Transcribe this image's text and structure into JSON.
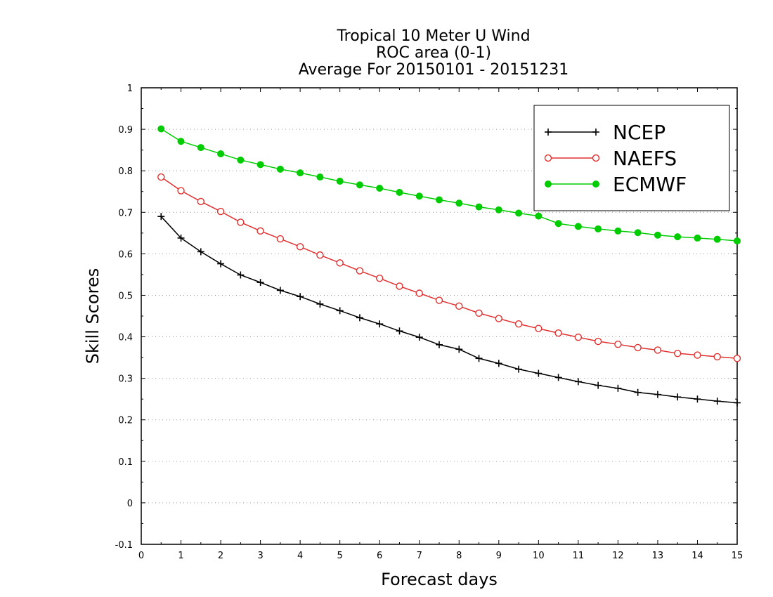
{
  "chart_data": {
    "type": "line",
    "title": [
      "Tropical 10 Meter U Wind",
      "ROC area (0-1)",
      "Average For 20150101 - 20151231"
    ],
    "xlabel": "Forecast days",
    "ylabel": "Skill Scores",
    "xlim": [
      0,
      15
    ],
    "ylim": [
      -0.1,
      1
    ],
    "xticks": [
      0,
      1,
      2,
      3,
      4,
      5,
      6,
      7,
      8,
      9,
      10,
      11,
      12,
      13,
      14,
      15
    ],
    "xtick_labels": [
      "0",
      "1",
      "2",
      "3",
      "4",
      "5",
      "6",
      "7",
      "8",
      "9",
      "10",
      "11",
      "12",
      "13",
      "14",
      "15"
    ],
    "yticks": [
      -0.1,
      0,
      0.1,
      0.2,
      0.3,
      0.4,
      0.5,
      0.6,
      0.7,
      0.8,
      0.9,
      1
    ],
    "ytick_labels": [
      "-0.1",
      "0",
      "0.1",
      "0.2",
      "0.3",
      "0.4",
      "0.5",
      "0.6",
      "0.7",
      "0.8",
      "0.9",
      "1"
    ],
    "grid": "horizontal dotted",
    "legend_position": "top-right",
    "x": [
      0.5,
      1,
      1.5,
      2,
      2.5,
      3,
      3.5,
      4,
      4.5,
      5,
      5.5,
      6,
      6.5,
      7,
      7.5,
      8,
      8.5,
      9,
      9.5,
      10,
      10.5,
      11,
      11.5,
      12,
      12.5,
      13,
      13.5,
      14,
      14.5,
      15
    ],
    "series": [
      {
        "name": "NCEP",
        "color": "#000000",
        "marker": "plus",
        "values": [
          0.69,
          0.638,
          0.605,
          0.576,
          0.549,
          0.531,
          0.512,
          0.497,
          0.479,
          0.463,
          0.446,
          0.431,
          0.414,
          0.399,
          0.381,
          0.37,
          0.348,
          0.336,
          0.322,
          0.312,
          0.302,
          0.292,
          0.283,
          0.276,
          0.266,
          0.261,
          0.255,
          0.25,
          0.245,
          0.241
        ]
      },
      {
        "name": "NAEFS",
        "color": "#e03030",
        "marker": "open-circle",
        "values": [
          0.785,
          0.752,
          0.726,
          0.702,
          0.676,
          0.655,
          0.636,
          0.617,
          0.597,
          0.578,
          0.559,
          0.541,
          0.522,
          0.505,
          0.488,
          0.474,
          0.457,
          0.444,
          0.431,
          0.42,
          0.409,
          0.399,
          0.389,
          0.382,
          0.374,
          0.368,
          0.36,
          0.356,
          0.352,
          0.348
        ]
      },
      {
        "name": "ECMWF",
        "color": "#00cc00",
        "marker": "filled-circle",
        "values": [
          0.901,
          0.871,
          0.856,
          0.841,
          0.826,
          0.815,
          0.804,
          0.795,
          0.785,
          0.775,
          0.766,
          0.758,
          0.748,
          0.739,
          0.73,
          0.722,
          0.713,
          0.706,
          0.698,
          0.691,
          0.673,
          0.666,
          0.66,
          0.655,
          0.651,
          0.645,
          0.641,
          0.638,
          0.635,
          0.631
        ]
      }
    ]
  }
}
